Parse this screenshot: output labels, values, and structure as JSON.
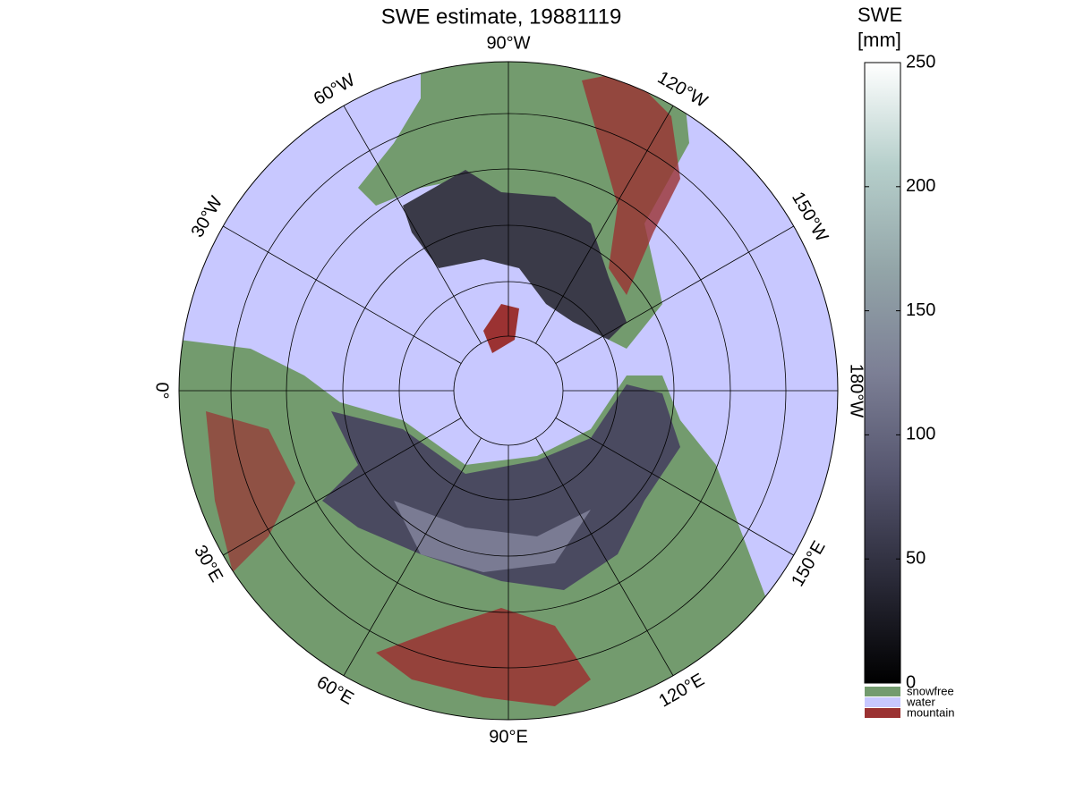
{
  "title": "SWE estimate, 19881119",
  "map": {
    "longitude_labels": [
      "90°W",
      "120°W",
      "150°W",
      "180°W",
      "150°E",
      "120°E",
      "90°E",
      "60°E",
      "30°E",
      "0°",
      "30°W",
      "60°W"
    ]
  },
  "colorbar": {
    "title": [
      "SWE",
      "[mm]"
    ],
    "lim": [
      0,
      250
    ],
    "ticks": [
      0,
      50,
      100,
      150,
      200,
      250
    ],
    "colors": [
      "#000000",
      "#2a2a38",
      "#55556e",
      "#7c7f95",
      "#93a5a8",
      "#b6cfcb",
      "#ffffff"
    ]
  },
  "legend": [
    {
      "label": "snowfree",
      "color": "#739b6e"
    },
    {
      "label": "water",
      "color": "#c8c8ff"
    },
    {
      "label": "mountain",
      "color": "#9b3232"
    }
  ]
}
